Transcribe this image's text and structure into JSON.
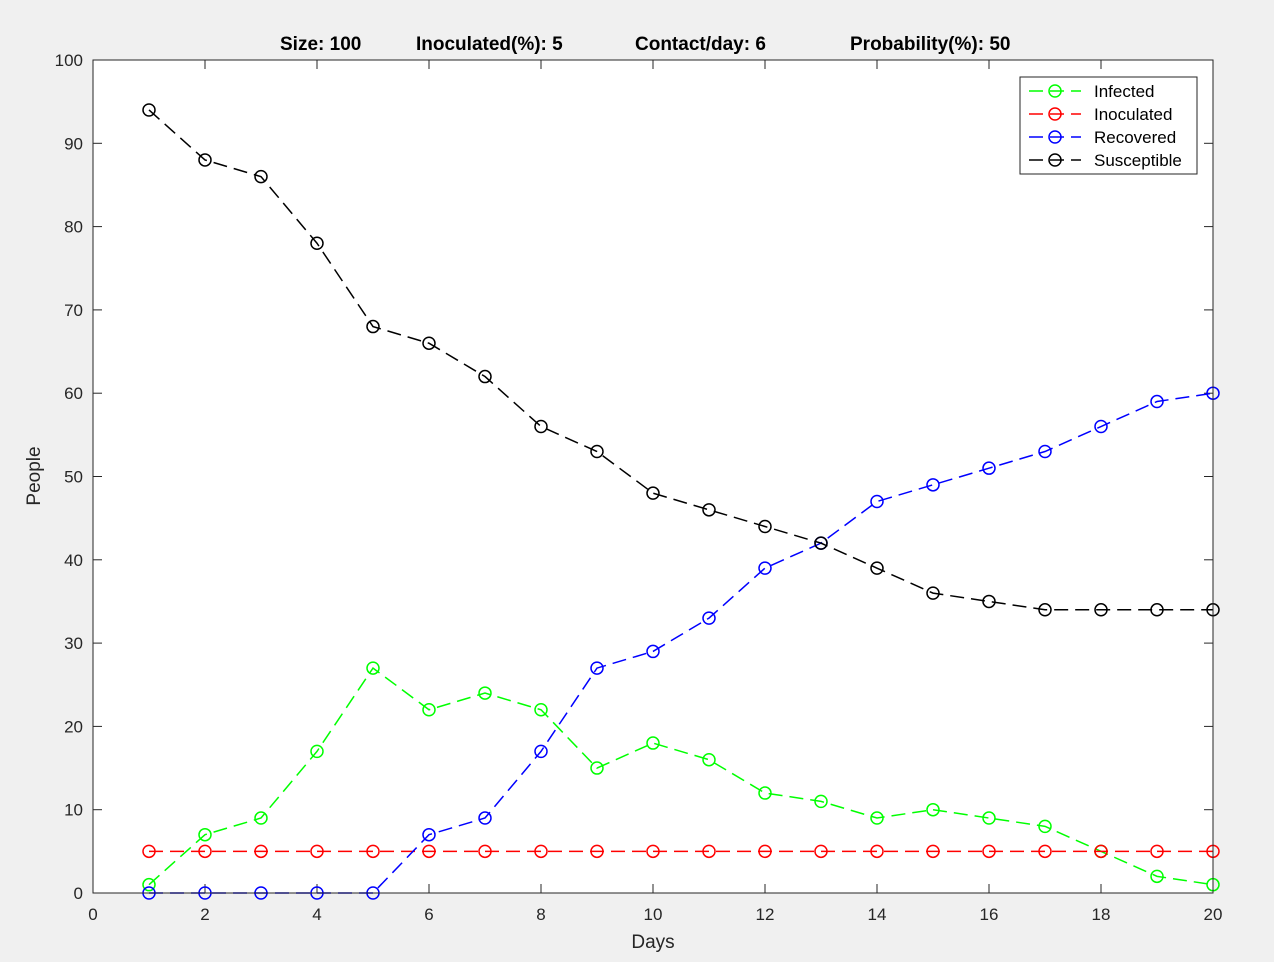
{
  "title_parts": [
    "Size: 100",
    "Inoculated(%): 5",
    "Contact/day: 6",
    "Probability(%): 50"
  ],
  "chart_data": {
    "type": "line",
    "xlabel": "Days",
    "ylabel": "People",
    "xlim": [
      0,
      20
    ],
    "ylim": [
      0,
      100
    ],
    "xticks": [
      0,
      2,
      4,
      6,
      8,
      10,
      12,
      14,
      16,
      18,
      20
    ],
    "yticks": [
      0,
      10,
      20,
      30,
      40,
      50,
      60,
      70,
      80,
      90,
      100
    ],
    "grid": false,
    "legend_position": "top-right",
    "x": [
      1,
      2,
      3,
      4,
      5,
      6,
      7,
      8,
      9,
      10,
      11,
      12,
      13,
      14,
      15,
      16,
      17,
      18,
      19,
      20
    ],
    "series": [
      {
        "name": "Infected",
        "color": "#00ff00",
        "values": [
          1,
          7,
          9,
          17,
          27,
          22,
          24,
          22,
          15,
          18,
          16,
          12,
          11,
          9,
          10,
          9,
          8,
          5,
          2,
          1
        ]
      },
      {
        "name": "Inoculated",
        "color": "#ff0000",
        "values": [
          5,
          5,
          5,
          5,
          5,
          5,
          5,
          5,
          5,
          5,
          5,
          5,
          5,
          5,
          5,
          5,
          5,
          5,
          5,
          5
        ]
      },
      {
        "name": "Recovered",
        "color": "#0000ff",
        "values": [
          0,
          0,
          0,
          0,
          0,
          7,
          9,
          17,
          27,
          29,
          33,
          39,
          42,
          47,
          49,
          51,
          53,
          56,
          59,
          60
        ]
      },
      {
        "name": "Susceptible",
        "color": "#000000",
        "values": [
          94,
          88,
          86,
          78,
          68,
          66,
          62,
          56,
          53,
          48,
          46,
          44,
          42,
          39,
          36,
          35,
          34,
          34,
          34,
          34
        ]
      }
    ]
  }
}
